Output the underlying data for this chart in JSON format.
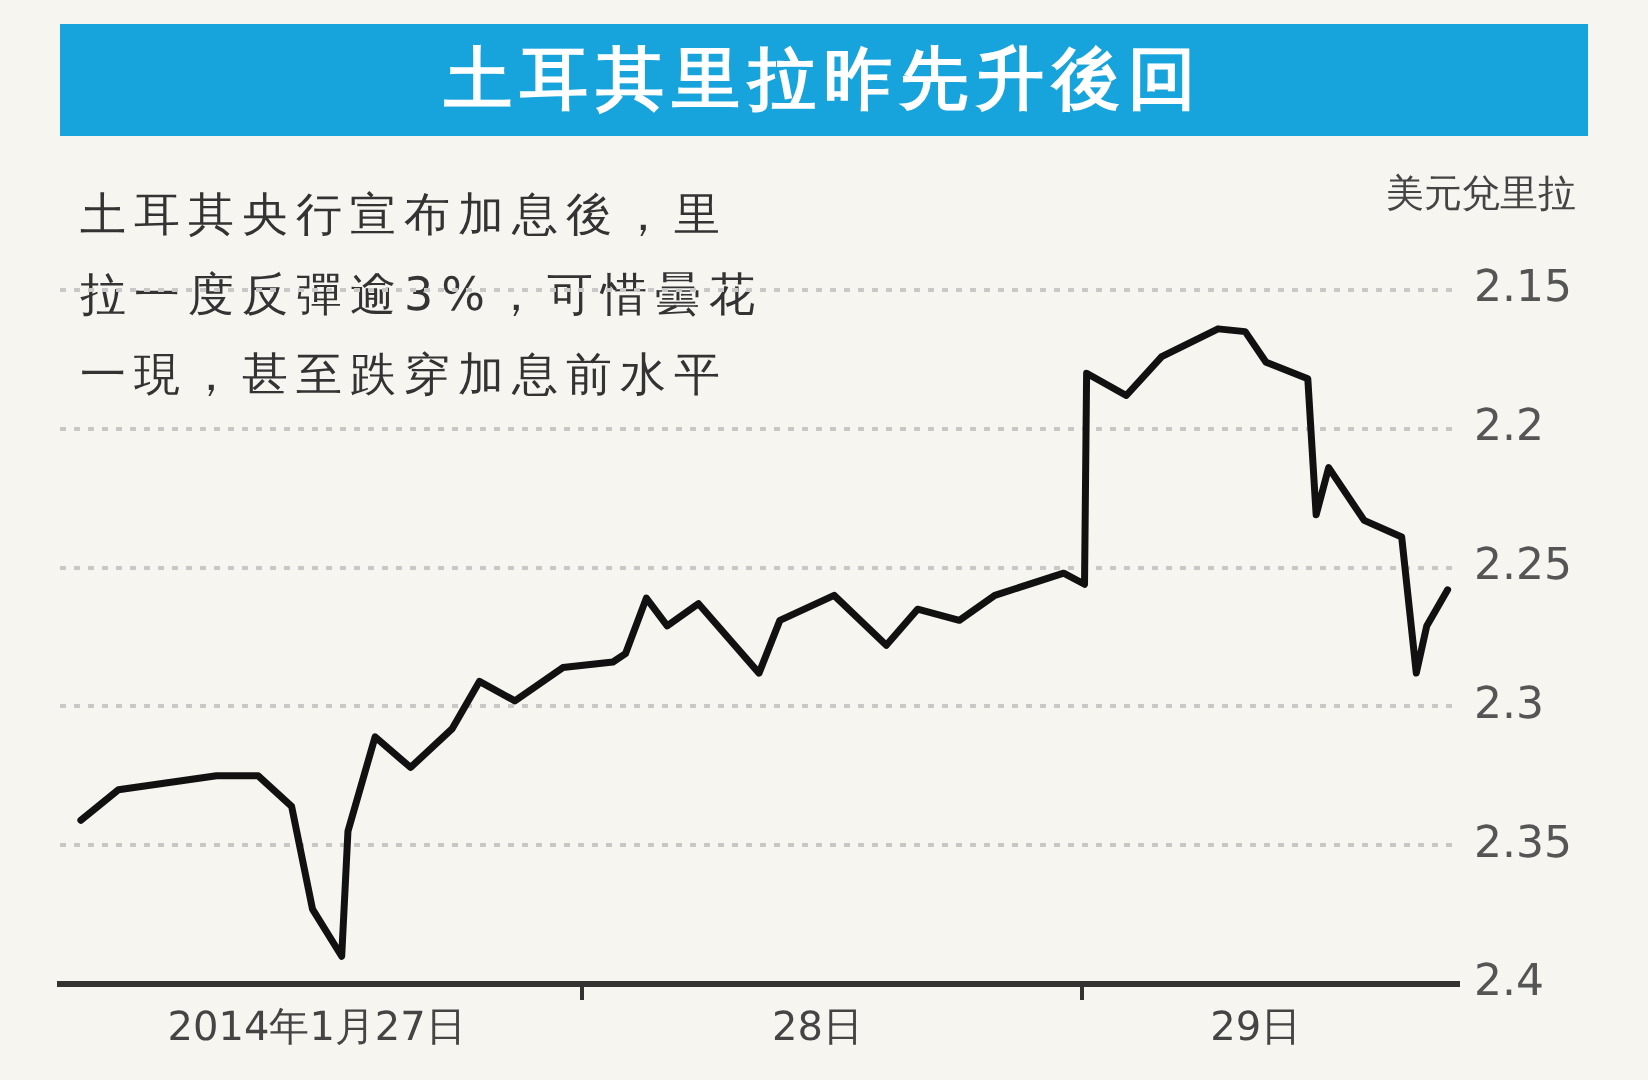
{
  "chart_data": {
    "type": "line",
    "title": "土耳其里拉昨先升後回",
    "subtitle": "土耳其央行宣布加息後，里拉一度反彈逾3%，可惜曇花一現，甚至跌穿加息前水平",
    "ylabel": "美元兌里拉",
    "x": [
      "2014-01-27T00:00",
      "2014-01-27T01:48",
      "2014-01-27T06:30",
      "2014-01-27T08:30",
      "2014-01-27T10:06",
      "2014-01-27T11:06",
      "2014-01-27T12:30",
      "2014-01-27T12:48",
      "2014-01-27T14:06",
      "2014-01-27T15:48",
      "2014-01-27T17:48",
      "2014-01-27T19:06",
      "2014-01-27T20:48",
      "2014-01-27T23:06",
      "2014-01-28T01:30",
      "2014-01-28T02:06",
      "2014-01-28T03:06",
      "2014-01-28T04:06",
      "2014-01-28T05:36",
      "2014-01-28T08:30",
      "2014-01-28T09:30",
      "2014-01-28T12:06",
      "2014-01-28T14:36",
      "2014-01-28T16:06",
      "2014-01-28T18:06",
      "2014-01-28T19:48",
      "2014-01-28T23:06",
      "2014-01-29T00:06",
      "2014-01-29T00:12",
      "2014-01-29T02:06",
      "2014-01-29T03:48",
      "2014-01-29T06:30",
      "2014-01-29T07:48",
      "2014-01-29T08:48",
      "2014-01-29T10:48",
      "2014-01-29T11:12",
      "2014-01-29T11:48",
      "2014-01-29T13:30",
      "2014-01-29T15:18",
      "2014-01-29T16:00",
      "2014-01-29T16:30",
      "2014-01-29T17:30"
    ],
    "series": [
      {
        "color": "#111111",
        "values": [
          2.341,
          2.33,
          2.325,
          2.325,
          2.336,
          2.373,
          2.39,
          2.345,
          2.311,
          2.322,
          2.308,
          2.291,
          2.298,
          2.286,
          2.284,
          2.281,
          2.261,
          2.271,
          2.263,
          2.288,
          2.269,
          2.26,
          2.278,
          2.265,
          2.269,
          2.26,
          2.252,
          2.256,
          2.18,
          2.188,
          2.174,
          2.164,
          2.165,
          2.176,
          2.182,
          2.231,
          2.214,
          2.233,
          2.239,
          2.288,
          2.271,
          2.258
        ]
      }
    ],
    "xlim": [
      "2014-01-26T23:00",
      "2014-01-29T18:00"
    ],
    "xticks": [
      {
        "value": "2014-01-27T11:18",
        "label": "2014年1月27日"
      },
      {
        "value": "2014-01-28T00:00",
        "label": null
      },
      {
        "value": "2014-01-28T11:18",
        "label": "28日"
      },
      {
        "value": "2014-01-29T00:00",
        "label": null
      },
      {
        "value": "2014-01-29T08:18",
        "label": "29日"
      }
    ],
    "ylim": [
      2.4,
      2.15
    ],
    "yticks": [
      2.15,
      2.2,
      2.25,
      2.3,
      2.35,
      2.4
    ],
    "grid": "y",
    "line_style": "solid"
  }
}
